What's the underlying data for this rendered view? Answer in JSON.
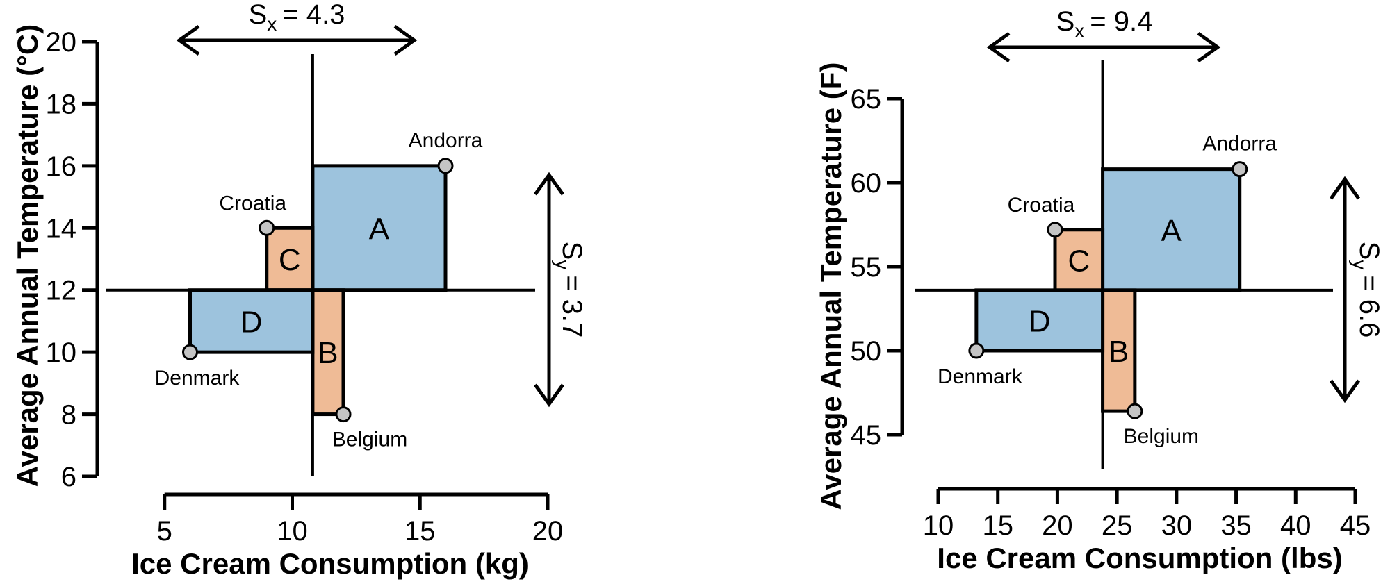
{
  "chart_data": [
    {
      "type": "scatter",
      "xlabel": "Ice Cream Consumption (kg)",
      "ylabel": "Average Annual Temperature (°C)",
      "xlim": [
        4,
        20
      ],
      "ylim": [
        6,
        20
      ],
      "xticks": [
        5,
        10,
        15,
        20
      ],
      "yticks": [
        6,
        8,
        10,
        12,
        14,
        16,
        18,
        20
      ],
      "x_mean": 10.8,
      "y_mean": 12,
      "points": [
        {
          "name": "Andorra",
          "x": 16,
          "y": 16
        },
        {
          "name": "Croatia",
          "x": 9,
          "y": 14
        },
        {
          "name": "Denmark",
          "x": 6,
          "y": 10
        },
        {
          "name": "Belgium",
          "x": 12,
          "y": 8
        }
      ],
      "rectangles": [
        {
          "label": "A",
          "point": "Andorra",
          "sign": "positive",
          "color": "#9dc3dd"
        },
        {
          "label": "B",
          "point": "Belgium",
          "sign": "negative",
          "color": "#efbb96"
        },
        {
          "label": "C",
          "point": "Croatia",
          "sign": "negative",
          "color": "#efbb96"
        },
        {
          "label": "D",
          "point": "Denmark",
          "sign": "positive",
          "color": "#9dc3dd"
        }
      ],
      "sx_label": "= 4.3",
      "sy_label": "= 3.7"
    },
    {
      "type": "scatter",
      "xlabel": "Ice Cream Consumption (lbs)",
      "ylabel": "Average Annual Temperature (F)",
      "xlim": [
        10,
        45
      ],
      "ylim": [
        45,
        65
      ],
      "xticks": [
        10,
        15,
        20,
        25,
        30,
        35,
        40,
        45
      ],
      "yticks": [
        45,
        50,
        55,
        60,
        65
      ],
      "x_mean": 23.8,
      "y_mean": 53.6,
      "points": [
        {
          "name": "Andorra",
          "x": 35.3,
          "y": 60.8
        },
        {
          "name": "Croatia",
          "x": 19.8,
          "y": 57.2
        },
        {
          "name": "Denmark",
          "x": 13.2,
          "y": 50
        },
        {
          "name": "Belgium",
          "x": 26.5,
          "y": 46.4
        }
      ],
      "rectangles": [
        {
          "label": "A",
          "point": "Andorra",
          "sign": "positive",
          "color": "#9dc3dd"
        },
        {
          "label": "B",
          "point": "Belgium",
          "sign": "negative",
          "color": "#efbb96"
        },
        {
          "label": "C",
          "point": "Croatia",
          "sign": "negative",
          "color": "#efbb96"
        },
        {
          "label": "D",
          "point": "Denmark",
          "sign": "positive",
          "color": "#9dc3dd"
        }
      ],
      "sx_label": "= 9.4",
      "sy_label": "= 6.6"
    }
  ]
}
